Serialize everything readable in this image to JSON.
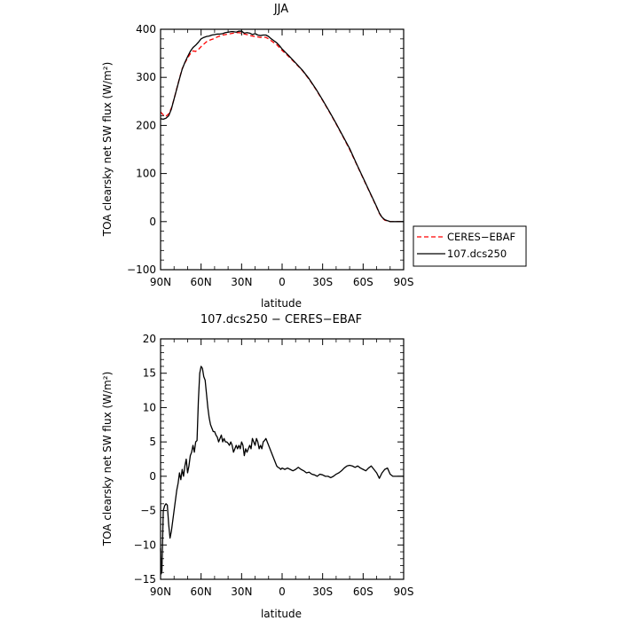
{
  "chart_data": [
    {
      "type": "line",
      "title": "JJA",
      "xlabel": "latitude",
      "ylabel": "TOA clearsky net SW flux (W/m²)",
      "x_ticks": [
        90,
        60,
        30,
        0,
        -30,
        -60,
        -90
      ],
      "x_tick_labels": [
        "90N",
        "60N",
        "30N",
        "0",
        "30S",
        "60S",
        "90S"
      ],
      "y_ticks": [
        -100,
        0,
        100,
        200,
        300,
        400
      ],
      "y_tick_labels": [
        "−100",
        "0",
        "100",
        "200",
        "300",
        "400"
      ],
      "xlim": [
        90,
        -90
      ],
      "ylim": [
        -100,
        400
      ],
      "grid": false,
      "legend": "right, outside plot",
      "series": [
        {
          "name": "CERES−EBAF",
          "color": "#ff0000",
          "style": "dashed",
          "points": [
            [
              90,
              228
            ],
            [
              88,
              222
            ],
            [
              86,
              219
            ],
            [
              84,
              224
            ],
            [
              82,
              236
            ],
            [
              80,
              255
            ],
            [
              78,
              277
            ],
            [
              76,
              298
            ],
            [
              74,
              318
            ],
            [
              72,
              330
            ],
            [
              70,
              340
            ],
            [
              68,
              349
            ],
            [
              66,
              355
            ],
            [
              64,
              354
            ],
            [
              62,
              358
            ],
            [
              60,
              364
            ],
            [
              58,
              369
            ],
            [
              56,
              374
            ],
            [
              54,
              377
            ],
            [
              52,
              379
            ],
            [
              50,
              381
            ],
            [
              48,
              384
            ],
            [
              46,
              386
            ],
            [
              44,
              388
            ],
            [
              42,
              389
            ],
            [
              40,
              390
            ],
            [
              38,
              391
            ],
            [
              36,
              392
            ],
            [
              34,
              393
            ],
            [
              32,
              393
            ],
            [
              30,
              392
            ],
            [
              28,
              390
            ],
            [
              26,
              389
            ],
            [
              24,
              387
            ],
            [
              22,
              386
            ],
            [
              20,
              385
            ],
            [
              18,
              384
            ],
            [
              16,
              383
            ],
            [
              14,
              384
            ],
            [
              12,
              383
            ],
            [
              10,
              380
            ],
            [
              8,
              376
            ],
            [
              6,
              372
            ],
            [
              4,
              368
            ],
            [
              2,
              362
            ],
            [
              0,
              356
            ],
            [
              -5,
              343
            ],
            [
              -10,
              329
            ],
            [
              -15,
              314
            ],
            [
              -20,
              296
            ],
            [
              -25,
              275
            ],
            [
              -30,
              252
            ],
            [
              -35,
              228
            ],
            [
              -40,
              203
            ],
            [
              -45,
              177
            ],
            [
              -50,
              150
            ],
            [
              -55,
              120
            ],
            [
              -60,
              90
            ],
            [
              -65,
              60
            ],
            [
              -70,
              30
            ],
            [
              -72,
              17
            ],
            [
              -74,
              8
            ],
            [
              -76,
              3
            ],
            [
              -78,
              1
            ],
            [
              -80,
              0
            ],
            [
              -85,
              0
            ],
            [
              -90,
              0
            ]
          ]
        },
        {
          "name": "107.dcs250",
          "color": "#000000",
          "style": "solid",
          "points": [
            [
              90,
              214
            ],
            [
              88,
              213
            ],
            [
              86,
              215
            ],
            [
              84,
              220
            ],
            [
              82,
              234
            ],
            [
              80,
              255
            ],
            [
              78,
              276
            ],
            [
              76,
              297
            ],
            [
              74,
              317
            ],
            [
              72,
              331
            ],
            [
              70,
              343
            ],
            [
              68,
              354
            ],
            [
              66,
              362
            ],
            [
              64,
              367
            ],
            [
              62,
              373
            ],
            [
              60,
              380
            ],
            [
              58,
              383
            ],
            [
              56,
              385
            ],
            [
              54,
              386
            ],
            [
              52,
              388
            ],
            [
              50,
              389
            ],
            [
              48,
              390
            ],
            [
              46,
              390
            ],
            [
              44,
              391
            ],
            [
              42,
              393
            ],
            [
              40,
              394
            ],
            [
              38,
              395
            ],
            [
              36,
              395
            ],
            [
              34,
              394
            ],
            [
              32,
              396
            ],
            [
              30,
              396
            ],
            [
              28,
              392
            ],
            [
              26,
              393
            ],
            [
              24,
              392
            ],
            [
              22,
              389
            ],
            [
              20,
              391
            ],
            [
              18,
              388
            ],
            [
              16,
              387
            ],
            [
              14,
              388
            ],
            [
              12,
              388
            ],
            [
              10,
              385
            ],
            [
              8,
              380
            ],
            [
              6,
              376
            ],
            [
              4,
              372
            ],
            [
              2,
              366
            ],
            [
              0,
              359
            ],
            [
              -5,
              345
            ],
            [
              -10,
              330
            ],
            [
              -15,
              315
            ],
            [
              -20,
              297
            ],
            [
              -25,
              276
            ],
            [
              -30,
              253
            ],
            [
              -35,
              229
            ],
            [
              -40,
              204
            ],
            [
              -45,
              178
            ],
            [
              -50,
              152
            ],
            [
              -55,
              121
            ],
            [
              -60,
              91
            ],
            [
              -65,
              61
            ],
            [
              -70,
              31
            ],
            [
              -72,
              18
            ],
            [
              -74,
              9
            ],
            [
              -76,
              4
            ],
            [
              -78,
              2
            ],
            [
              -80,
              0
            ],
            [
              -85,
              0
            ],
            [
              -90,
              0
            ]
          ]
        }
      ]
    },
    {
      "type": "line",
      "title": "107.dcs250 − CERES−EBAF",
      "xlabel": "latitude",
      "ylabel": "TOA clearsky net SW flux (W/m²)",
      "x_ticks": [
        90,
        60,
        30,
        0,
        -30,
        -60,
        -90
      ],
      "x_tick_labels": [
        "90N",
        "60N",
        "30N",
        "0",
        "30S",
        "60S",
        "90S"
      ],
      "y_ticks": [
        -15,
        -10,
        -5,
        0,
        5,
        10,
        15,
        20
      ],
      "y_tick_labels": [
        "−15",
        "−10",
        "−5",
        "0",
        "5",
        "10",
        "15",
        "20"
      ],
      "xlim": [
        90,
        -90
      ],
      "ylim": [
        -15,
        20
      ],
      "grid": false,
      "series": [
        {
          "color": "#000000",
          "style": "solid",
          "points": [
            [
              90,
              -10.5
            ],
            [
              89.5,
              -14.2
            ],
            [
              89,
              -13.8
            ],
            [
              88,
              -5
            ],
            [
              87,
              -4.3
            ],
            [
              86,
              -4
            ],
            [
              85,
              -4.2
            ],
            [
              84,
              -7
            ],
            [
              83,
              -9
            ],
            [
              82,
              -8
            ],
            [
              81,
              -6.5
            ],
            [
              80,
              -5
            ],
            [
              79,
              -3.5
            ],
            [
              78,
              -2
            ],
            [
              77,
              -1
            ],
            [
              76,
              0.5
            ],
            [
              75,
              -0.5
            ],
            [
              74,
              1
            ],
            [
              73,
              0
            ],
            [
              72,
              1.5
            ],
            [
              71,
              2.5
            ],
            [
              70,
              0.5
            ],
            [
              69,
              1.5
            ],
            [
              68,
              3
            ],
            [
              67,
              3.5
            ],
            [
              66,
              4.5
            ],
            [
              65,
              3.5
            ],
            [
              64,
              5
            ],
            [
              63,
              5.2
            ],
            [
              62,
              11
            ],
            [
              61,
              15
            ],
            [
              60,
              16
            ],
            [
              59,
              15.7
            ],
            [
              58,
              14.5
            ],
            [
              57,
              14
            ],
            [
              56,
              12
            ],
            [
              55,
              10
            ],
            [
              54,
              8.5
            ],
            [
              53,
              7.5
            ],
            [
              52,
              7
            ],
            [
              51,
              6.5
            ],
            [
              50,
              6.5
            ],
            [
              49,
              6
            ],
            [
              48,
              5.7
            ],
            [
              47,
              5
            ],
            [
              46,
              5.5
            ],
            [
              45,
              6
            ],
            [
              44,
              5
            ],
            [
              43,
              5.5
            ],
            [
              42,
              5
            ],
            [
              41,
              5
            ],
            [
              40,
              4.8
            ],
            [
              39,
              4.5
            ],
            [
              38,
              5
            ],
            [
              37,
              4.5
            ],
            [
              36,
              3.5
            ],
            [
              35,
              4
            ],
            [
              34,
              4.5
            ],
            [
              33,
              4
            ],
            [
              32,
              4.5
            ],
            [
              31,
              4
            ],
            [
              30,
              5
            ],
            [
              29,
              4.5
            ],
            [
              28,
              3
            ],
            [
              27,
              4
            ],
            [
              26,
              3.5
            ],
            [
              25,
              4
            ],
            [
              24,
              4.5
            ],
            [
              23,
              4
            ],
            [
              22,
              5.5
            ],
            [
              21,
              5
            ],
            [
              20,
              4.5
            ],
            [
              19,
              5.5
            ],
            [
              18,
              5
            ],
            [
              17,
              4
            ],
            [
              16,
              4.5
            ],
            [
              15,
              4
            ],
            [
              14,
              5
            ],
            [
              13,
              5.2
            ],
            [
              12,
              5.5
            ],
            [
              11,
              5
            ],
            [
              10,
              4.5
            ],
            [
              9,
              4
            ],
            [
              8,
              3.5
            ],
            [
              7,
              3
            ],
            [
              6,
              2.5
            ],
            [
              5,
              2
            ],
            [
              4,
              1.5
            ],
            [
              3,
              1.3
            ],
            [
              2,
              1.2
            ],
            [
              1,
              1
            ],
            [
              0,
              1.2
            ],
            [
              -2,
              1
            ],
            [
              -4,
              1.2
            ],
            [
              -6,
              1
            ],
            [
              -8,
              0.8
            ],
            [
              -10,
              1
            ],
            [
              -12,
              1.3
            ],
            [
              -14,
              1
            ],
            [
              -16,
              0.8
            ],
            [
              -18,
              0.5
            ],
            [
              -20,
              0.6
            ],
            [
              -22,
              0.3
            ],
            [
              -24,
              0.2
            ],
            [
              -26,
              0
            ],
            [
              -28,
              0.3
            ],
            [
              -30,
              0.2
            ],
            [
              -32,
              0
            ],
            [
              -34,
              0
            ],
            [
              -36,
              -0.2
            ],
            [
              -38,
              0
            ],
            [
              -40,
              0.3
            ],
            [
              -42,
              0.5
            ],
            [
              -44,
              0.8
            ],
            [
              -46,
              1.2
            ],
            [
              -48,
              1.5
            ],
            [
              -50,
              1.6
            ],
            [
              -52,
              1.5
            ],
            [
              -54,
              1.3
            ],
            [
              -56,
              1.5
            ],
            [
              -58,
              1.2
            ],
            [
              -60,
              1
            ],
            [
              -62,
              0.8
            ],
            [
              -64,
              1.2
            ],
            [
              -66,
              1.5
            ],
            [
              -68,
              1
            ],
            [
              -70,
              0.5
            ],
            [
              -72,
              -0.3
            ],
            [
              -74,
              0.5
            ],
            [
              -76,
              1
            ],
            [
              -78,
              1.2
            ],
            [
              -80,
              0.3
            ],
            [
              -82,
              0
            ],
            [
              -84,
              0
            ],
            [
              -86,
              0
            ],
            [
              -88,
              0
            ],
            [
              -90,
              0
            ]
          ]
        }
      ]
    }
  ]
}
